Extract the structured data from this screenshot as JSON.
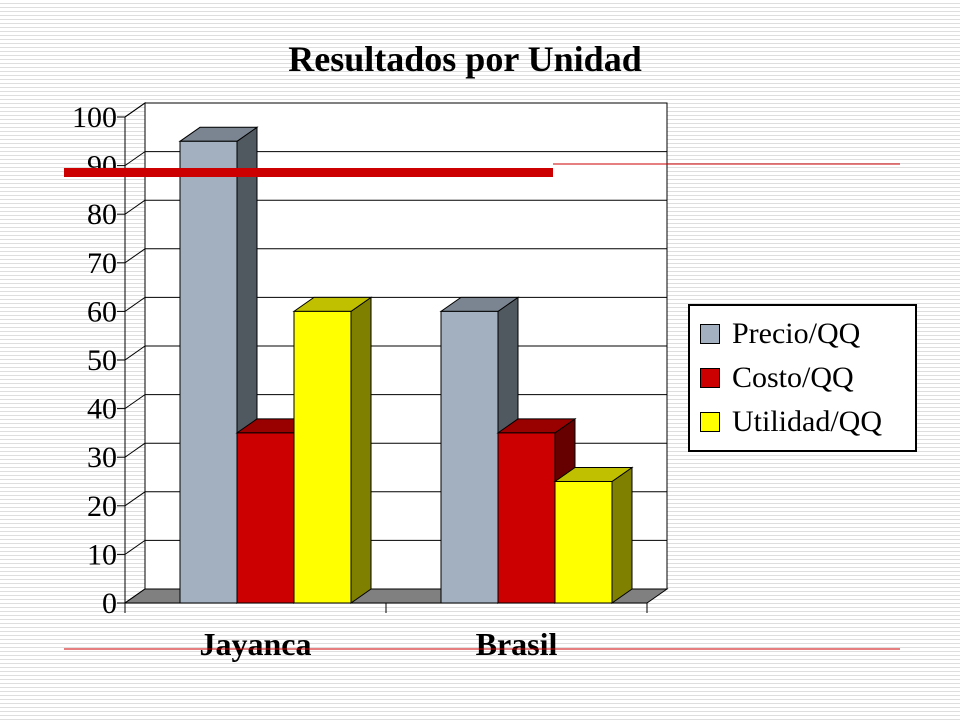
{
  "title": "Resultados por Unidad",
  "chart_data": {
    "type": "bar",
    "title": "Resultados por Unidad",
    "categories": [
      "Jayanca",
      "Brasil"
    ],
    "series": [
      {
        "name": "Precio/QQ",
        "values": [
          95,
          60
        ]
      },
      {
        "name": "Costo/QQ",
        "values": [
          35,
          35
        ]
      },
      {
        "name": "Utilidad/QQ",
        "values": [
          60,
          25
        ]
      }
    ],
    "ylim": [
      0,
      100
    ],
    "yticks": [
      0,
      10,
      20,
      30,
      40,
      50,
      60,
      70,
      80,
      90,
      100
    ],
    "grid": true,
    "legend_position": "right",
    "reference_line": 89,
    "three_d": true
  },
  "colors": {
    "Precio/QQ": {
      "front": "#a3b0c0",
      "side": "#505860",
      "top": "#7b8591"
    },
    "Costo/QQ": {
      "front": "#cc0000",
      "side": "#660000",
      "top": "#990000"
    },
    "Utilidad/QQ": {
      "front": "#ffff00",
      "side": "#808000",
      "top": "#c0c000"
    },
    "reference_line": "#cc0000",
    "floor": "#808080"
  }
}
